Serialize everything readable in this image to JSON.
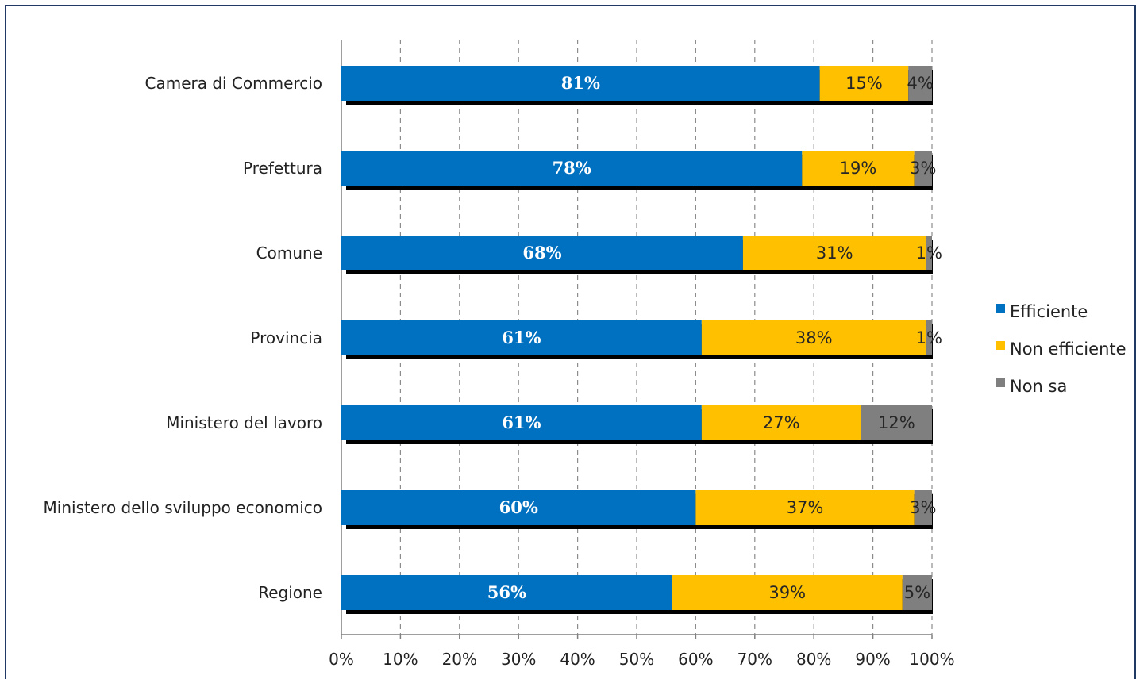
{
  "chart_data": {
    "type": "bar",
    "orientation": "horizontal",
    "stacked": true,
    "percent": true,
    "categories": [
      "Camera di Commercio",
      "Prefettura",
      "Comune",
      "Provincia",
      "Ministero del lavoro",
      "Ministero dello sviluppo economico",
      "Regione"
    ],
    "series": [
      {
        "name": "Efficiente",
        "color": "#0070c0",
        "values": [
          81,
          78,
          68,
          61,
          61,
          60,
          56
        ],
        "labels": [
          "81%",
          "78%",
          "68%",
          "61%",
          "61%",
          "60%",
          "56%"
        ]
      },
      {
        "name": "Non efficiente",
        "color": "#ffc000",
        "values": [
          15,
          19,
          31,
          38,
          27,
          37,
          39
        ],
        "labels": [
          "15%",
          "19%",
          "31%",
          "38%",
          "27%",
          "37%",
          "39%"
        ]
      },
      {
        "name": "Non sa",
        "color": "#7f7f7f",
        "values": [
          4,
          3,
          1,
          1,
          12,
          3,
          5
        ],
        "labels": [
          "4%",
          "3%",
          "1%",
          "1%",
          "12%",
          "3%",
          "5%"
        ]
      }
    ],
    "xlim": [
      0,
      100
    ],
    "xticks": [
      "0%",
      "10%",
      "20%",
      "30%",
      "40%",
      "50%",
      "60%",
      "70%",
      "80%",
      "90%",
      "100%"
    ],
    "title": "",
    "xlabel": "",
    "ylabel": "",
    "grid": "vertical dashed",
    "legend": "right"
  }
}
